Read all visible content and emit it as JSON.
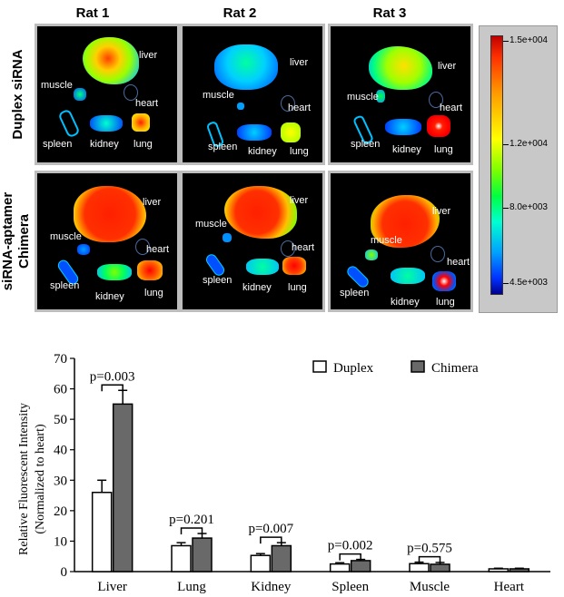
{
  "heatmap": {
    "columns": [
      "Rat 1",
      "Rat 2",
      "Rat 3"
    ],
    "rows": [
      {
        "label_line1": "Duplex siRNA",
        "label_line2": ""
      },
      {
        "label_line1": "siRNA-aptamer",
        "label_line2": "Chimera"
      }
    ],
    "organ_labels": {
      "liver": "liver",
      "muscle": "muscle",
      "heart": "heart",
      "spleen": "spleen",
      "kidney": "kidney",
      "lung": "lung"
    },
    "scale": {
      "ticks": [
        "1.5e+004",
        "1.2e+004",
        "8.0e+003",
        "4.5e+003"
      ]
    }
  },
  "chart_data": {
    "type": "bar",
    "categories": [
      "Liver",
      "Lung",
      "Kidney",
      "Spleen",
      "Muscle",
      "Heart"
    ],
    "series": [
      {
        "name": "Duplex",
        "color": "#ffffff",
        "values": [
          26,
          8.5,
          5.3,
          2.5,
          2.6,
          0.9
        ],
        "errors": [
          4,
          1,
          0.6,
          0.4,
          0.5,
          0.2
        ]
      },
      {
        "name": "Chimera",
        "color": "#696969",
        "values": [
          55,
          11,
          8.5,
          3.6,
          2.4,
          0.9
        ],
        "errors": [
          4.5,
          1.5,
          1,
          0.4,
          0.6,
          0.2
        ]
      }
    ],
    "pvalues": [
      "p=0.003",
      "p=0.201",
      "p=0.007",
      "p=0.002",
      "p=0.575",
      ""
    ],
    "ylabel_line1": "Relative Fluorescent Intensity",
    "ylabel_line2": "(Normalized to heart)",
    "ylim": [
      0,
      70
    ],
    "yticks": [
      0,
      10,
      20,
      30,
      40,
      50,
      60,
      70
    ],
    "legend_position": "top-right"
  }
}
